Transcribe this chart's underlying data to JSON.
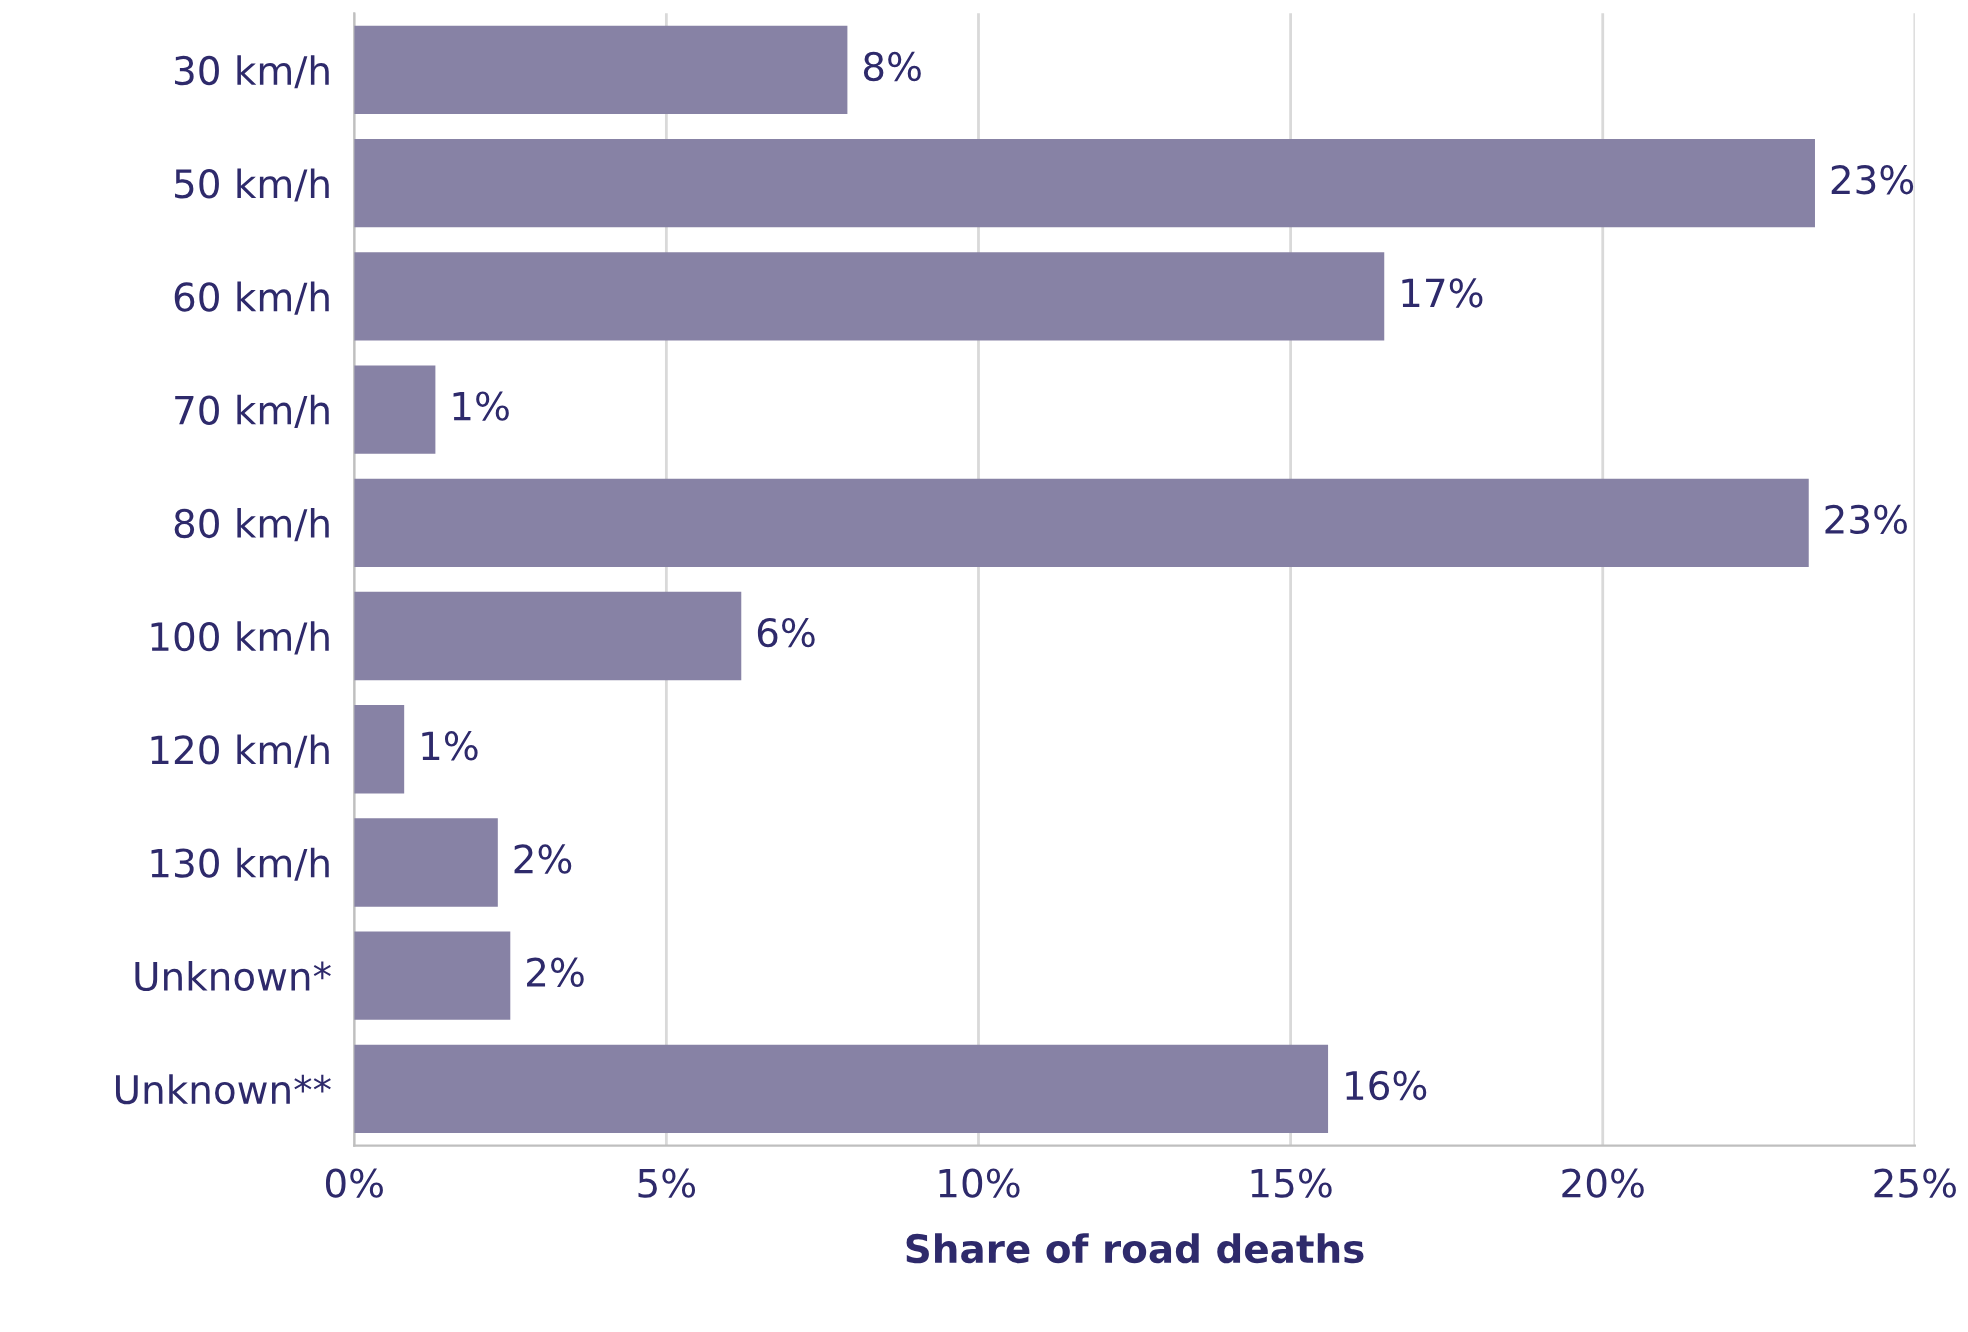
{
  "chart_data": {
    "type": "bar",
    "orientation": "horizontal",
    "xlabel": "Share of road deaths",
    "categories": [
      "30 km/h",
      "50 km/h",
      "60 km/h",
      "70 km/h",
      "80 km/h",
      "100 km/h",
      "120 km/h",
      "130 km/h",
      "Unknown*",
      "Unknown**"
    ],
    "values": [
      7.9,
      23.4,
      16.5,
      1.3,
      23.3,
      6.2,
      0.8,
      2.3,
      2.5,
      15.6
    ],
    "value_labels": [
      "8%",
      "23%",
      "17%",
      "1%",
      "23%",
      "6%",
      "1%",
      "2%",
      "2%",
      "16%"
    ],
    "color": "#8782a5",
    "xlim": [
      0,
      25
    ],
    "xticks": [
      {
        "value": 0,
        "label": "0%"
      },
      {
        "value": 5,
        "label": "5%"
      },
      {
        "value": 10,
        "label": "10%"
      },
      {
        "value": 15,
        "label": "15%"
      },
      {
        "value": 20,
        "label": "20%"
      },
      {
        "value": 25,
        "label": "25%"
      }
    ],
    "grid": "x"
  }
}
